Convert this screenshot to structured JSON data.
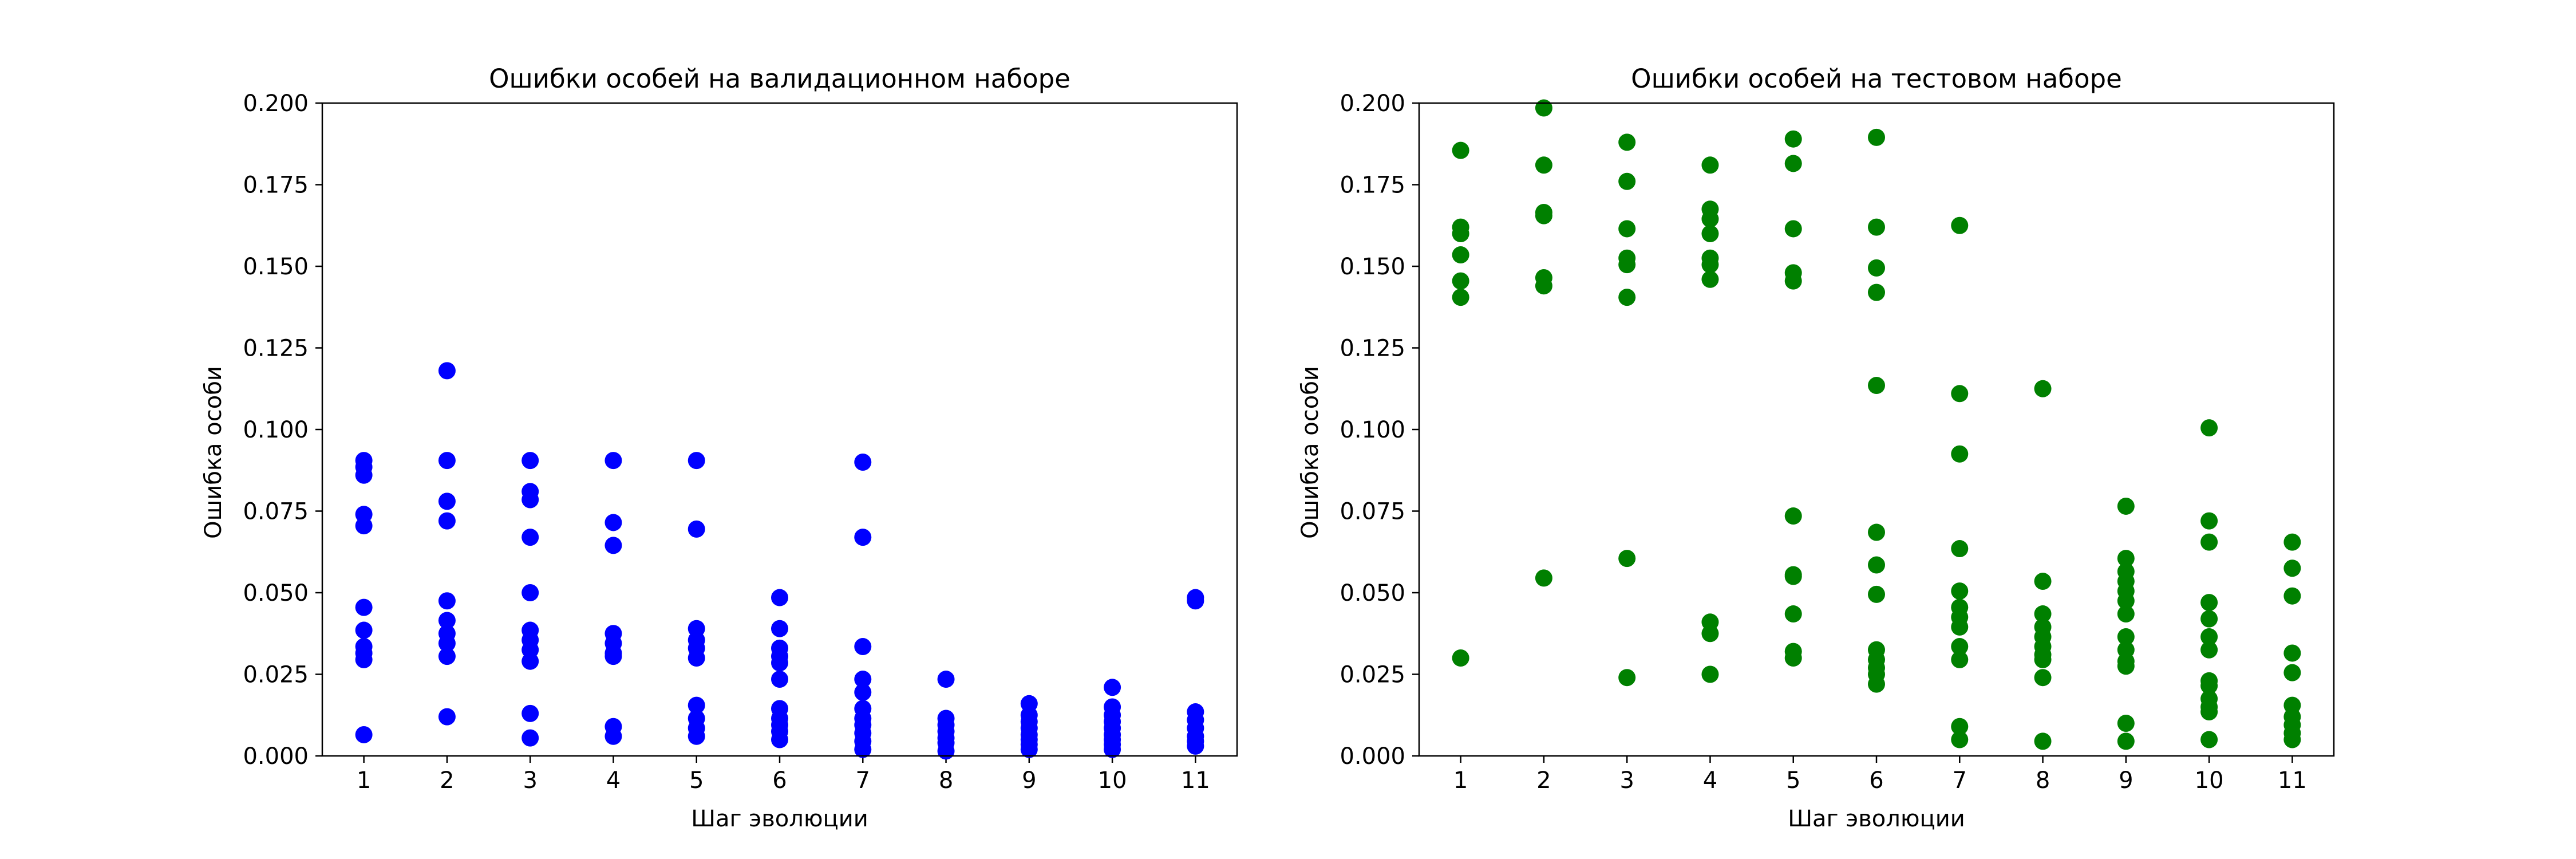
{
  "chart_data": [
    {
      "type": "scatter",
      "title": "Ошибки особей на валидационном наборе",
      "xlabel": "Шаг эволюции",
      "ylabel": "Ошибка особи",
      "xlim": [
        0.5,
        11.5
      ],
      "ylim": [
        0,
        0.2
      ],
      "xticks": [
        "1",
        "2",
        "3",
        "4",
        "5",
        "6",
        "7",
        "8",
        "9",
        "10",
        "11"
      ],
      "yticks": [
        "0.000",
        "0.025",
        "0.050",
        "0.075",
        "0.100",
        "0.125",
        "0.150",
        "0.175",
        "0.200"
      ],
      "grid": false,
      "series": [
        {
          "color": "#0000ff",
          "points": [
            [
              1,
              0.0905
            ],
            [
              1,
              0.0885
            ],
            [
              1,
              0.086
            ],
            [
              1,
              0.074
            ],
            [
              1,
              0.0705
            ],
            [
              1,
              0.0455
            ],
            [
              1,
              0.0385
            ],
            [
              1,
              0.0335
            ],
            [
              1,
              0.0315
            ],
            [
              1,
              0.0295
            ],
            [
              1,
              0.0065
            ],
            [
              2,
              0.118
            ],
            [
              2,
              0.0905
            ],
            [
              2,
              0.078
            ],
            [
              2,
              0.072
            ],
            [
              2,
              0.0475
            ],
            [
              2,
              0.0415
            ],
            [
              2,
              0.0375
            ],
            [
              2,
              0.0345
            ],
            [
              2,
              0.0305
            ],
            [
              2,
              0.012
            ],
            [
              3,
              0.0905
            ],
            [
              3,
              0.081
            ],
            [
              3,
              0.0785
            ],
            [
              3,
              0.067
            ],
            [
              3,
              0.05
            ],
            [
              3,
              0.0385
            ],
            [
              3,
              0.0355
            ],
            [
              3,
              0.0325
            ],
            [
              3,
              0.029
            ],
            [
              3,
              0.013
            ],
            [
              3,
              0.0055
            ],
            [
              4,
              0.0905
            ],
            [
              4,
              0.0715
            ],
            [
              4,
              0.0645
            ],
            [
              4,
              0.0375
            ],
            [
              4,
              0.0345
            ],
            [
              4,
              0.0315
            ],
            [
              4,
              0.0305
            ],
            [
              4,
              0.009
            ],
            [
              4,
              0.006
            ],
            [
              5,
              0.0905
            ],
            [
              5,
              0.0695
            ],
            [
              5,
              0.039
            ],
            [
              5,
              0.0355
            ],
            [
              5,
              0.033
            ],
            [
              5,
              0.03
            ],
            [
              5,
              0.0155
            ],
            [
              5,
              0.0115
            ],
            [
              5,
              0.0085
            ],
            [
              5,
              0.006
            ],
            [
              6,
              0.0485
            ],
            [
              6,
              0.039
            ],
            [
              6,
              0.033
            ],
            [
              6,
              0.0305
            ],
            [
              6,
              0.0285
            ],
            [
              6,
              0.0235
            ],
            [
              6,
              0.0145
            ],
            [
              6,
              0.0115
            ],
            [
              6,
              0.0095
            ],
            [
              6,
              0.0075
            ],
            [
              6,
              0.005
            ],
            [
              7,
              0.09
            ],
            [
              7,
              0.067
            ],
            [
              7,
              0.0335
            ],
            [
              7,
              0.0235
            ],
            [
              7,
              0.0195
            ],
            [
              7,
              0.0145
            ],
            [
              7,
              0.0115
            ],
            [
              7,
              0.0095
            ],
            [
              7,
              0.007
            ],
            [
              7,
              0.0045
            ],
            [
              7,
              0.002
            ],
            [
              8,
              0.0235
            ],
            [
              8,
              0.0115
            ],
            [
              8,
              0.0095
            ],
            [
              8,
              0.0075
            ],
            [
              8,
              0.0055
            ],
            [
              8,
              0.004
            ],
            [
              8,
              0.0015
            ],
            [
              9,
              0.016
            ],
            [
              9,
              0.0125
            ],
            [
              9,
              0.0105
            ],
            [
              9,
              0.0085
            ],
            [
              9,
              0.0065
            ],
            [
              9,
              0.005
            ],
            [
              9,
              0.0035
            ],
            [
              9,
              0.002
            ],
            [
              10,
              0.021
            ],
            [
              10,
              0.015
            ],
            [
              10,
              0.0125
            ],
            [
              10,
              0.0105
            ],
            [
              10,
              0.0085
            ],
            [
              10,
              0.0065
            ],
            [
              10,
              0.005
            ],
            [
              10,
              0.0035
            ],
            [
              10,
              0.002
            ],
            [
              11,
              0.0485
            ],
            [
              11,
              0.0475
            ],
            [
              11,
              0.0135
            ],
            [
              11,
              0.011
            ],
            [
              11,
              0.0085
            ],
            [
              11,
              0.006
            ],
            [
              11,
              0.0045
            ],
            [
              11,
              0.003
            ]
          ]
        }
      ]
    },
    {
      "type": "scatter",
      "title": "Ошибки особей на тестовом наборе",
      "xlabel": "Шаг эволюции",
      "ylabel": "Ошибка особи",
      "xlim": [
        0.5,
        11.5
      ],
      "ylim": [
        0,
        0.2
      ],
      "xticks": [
        "1",
        "2",
        "3",
        "4",
        "5",
        "6",
        "7",
        "8",
        "9",
        "10",
        "11"
      ],
      "yticks": [
        "0.000",
        "0.025",
        "0.050",
        "0.075",
        "0.100",
        "0.125",
        "0.150",
        "0.175",
        "0.200"
      ],
      "grid": false,
      "series": [
        {
          "color": "#008000",
          "points": [
            [
              1,
              0.1855
            ],
            [
              1,
              0.162
            ],
            [
              1,
              0.16
            ],
            [
              1,
              0.1535
            ],
            [
              1,
              0.1455
            ],
            [
              1,
              0.1405
            ],
            [
              1,
              0.03
            ],
            [
              2,
              0.1985
            ],
            [
              2,
              0.181
            ],
            [
              2,
              0.1665
            ],
            [
              2,
              0.1655
            ],
            [
              2,
              0.1465
            ],
            [
              2,
              0.144
            ],
            [
              2,
              0.0545
            ],
            [
              3,
              0.188
            ],
            [
              3,
              0.176
            ],
            [
              3,
              0.1615
            ],
            [
              3,
              0.1525
            ],
            [
              3,
              0.1505
            ],
            [
              3,
              0.1405
            ],
            [
              3,
              0.0605
            ],
            [
              3,
              0.024
            ],
            [
              4,
              0.181
            ],
            [
              4,
              0.1675
            ],
            [
              4,
              0.1645
            ],
            [
              4,
              0.16
            ],
            [
              4,
              0.1525
            ],
            [
              4,
              0.1505
            ],
            [
              4,
              0.146
            ],
            [
              4,
              0.041
            ],
            [
              4,
              0.0375
            ],
            [
              4,
              0.025
            ],
            [
              5,
              0.189
            ],
            [
              5,
              0.1815
            ],
            [
              5,
              0.1615
            ],
            [
              5,
              0.148
            ],
            [
              5,
              0.1455
            ],
            [
              5,
              0.0735
            ],
            [
              5,
              0.0555
            ],
            [
              5,
              0.055
            ],
            [
              5,
              0.0435
            ],
            [
              5,
              0.032
            ],
            [
              5,
              0.03
            ],
            [
              6,
              0.1895
            ],
            [
              6,
              0.162
            ],
            [
              6,
              0.1495
            ],
            [
              6,
              0.142
            ],
            [
              6,
              0.1135
            ],
            [
              6,
              0.0685
            ],
            [
              6,
              0.0585
            ],
            [
              6,
              0.0495
            ],
            [
              6,
              0.0325
            ],
            [
              6,
              0.0295
            ],
            [
              6,
              0.027
            ],
            [
              6,
              0.025
            ],
            [
              6,
              0.022
            ],
            [
              7,
              0.1625
            ],
            [
              7,
              0.111
            ],
            [
              7,
              0.0925
            ],
            [
              7,
              0.0635
            ],
            [
              7,
              0.0505
            ],
            [
              7,
              0.0455
            ],
            [
              7,
              0.0425
            ],
            [
              7,
              0.0395
            ],
            [
              7,
              0.0335
            ],
            [
              7,
              0.0295
            ],
            [
              7,
              0.009
            ],
            [
              7,
              0.005
            ],
            [
              8,
              0.1125
            ],
            [
              8,
              0.0535
            ],
            [
              8,
              0.0435
            ],
            [
              8,
              0.0395
            ],
            [
              8,
              0.0365
            ],
            [
              8,
              0.0335
            ],
            [
              8,
              0.031
            ],
            [
              8,
              0.0295
            ],
            [
              8,
              0.024
            ],
            [
              8,
              0.0045
            ],
            [
              9,
              0.0765
            ],
            [
              9,
              0.0605
            ],
            [
              9,
              0.0565
            ],
            [
              9,
              0.0535
            ],
            [
              9,
              0.0505
            ],
            [
              9,
              0.0475
            ],
            [
              9,
              0.0435
            ],
            [
              9,
              0.0365
            ],
            [
              9,
              0.0325
            ],
            [
              9,
              0.029
            ],
            [
              9,
              0.0275
            ],
            [
              9,
              0.01
            ],
            [
              9,
              0.0045
            ],
            [
              10,
              0.1005
            ],
            [
              10,
              0.072
            ],
            [
              10,
              0.0655
            ],
            [
              10,
              0.047
            ],
            [
              10,
              0.042
            ],
            [
              10,
              0.0365
            ],
            [
              10,
              0.0325
            ],
            [
              10,
              0.023
            ],
            [
              10,
              0.0215
            ],
            [
              10,
              0.0175
            ],
            [
              10,
              0.015
            ],
            [
              10,
              0.0135
            ],
            [
              10,
              0.005
            ],
            [
              11,
              0.0655
            ],
            [
              11,
              0.0575
            ],
            [
              11,
              0.049
            ],
            [
              11,
              0.0315
            ],
            [
              11,
              0.0255
            ],
            [
              11,
              0.0155
            ],
            [
              11,
              0.012
            ],
            [
              11,
              0.0095
            ],
            [
              11,
              0.007
            ],
            [
              11,
              0.005
            ]
          ]
        }
      ]
    }
  ]
}
